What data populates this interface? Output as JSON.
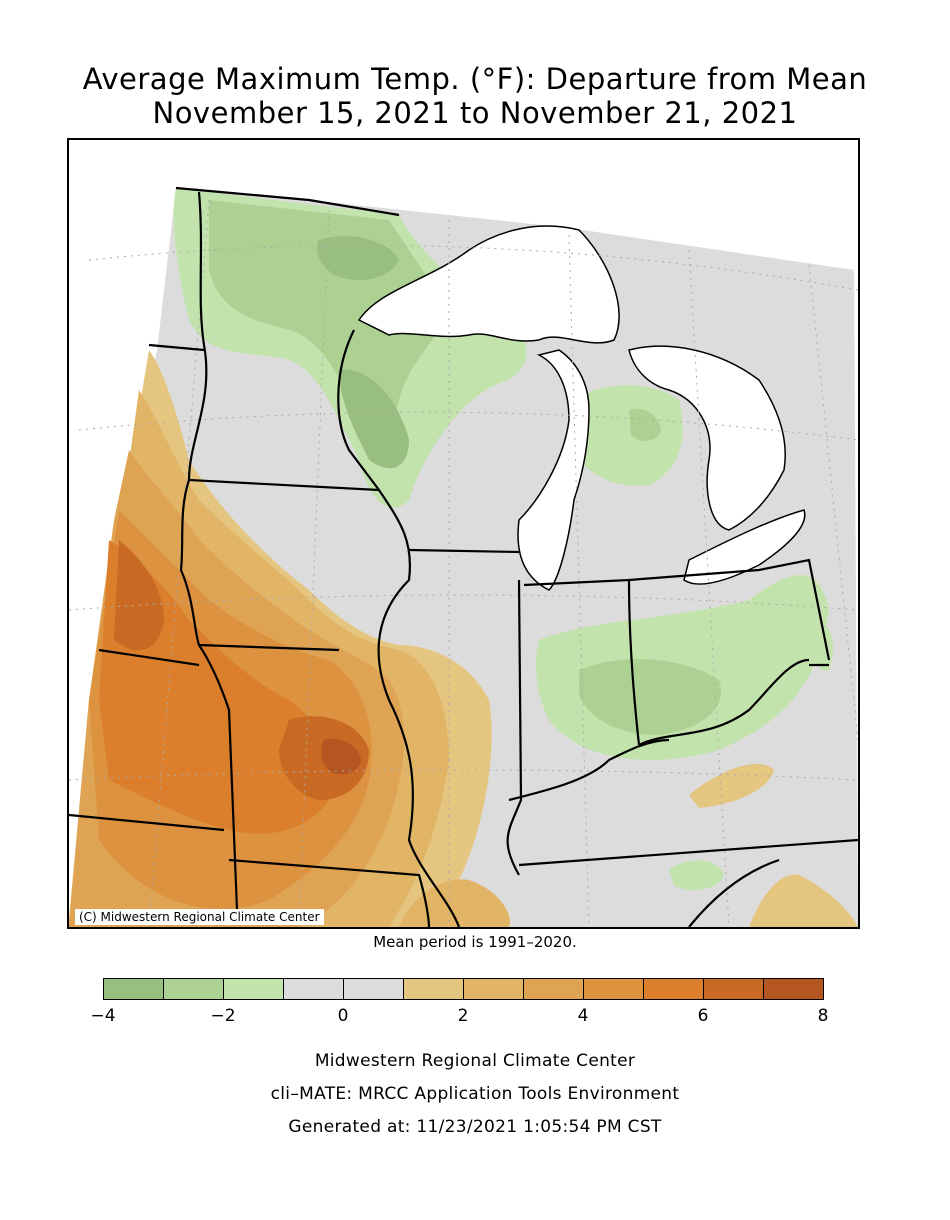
{
  "title": {
    "line1": "Average Maximum Temp. (°F): Departure from Mean",
    "line2": "November 15, 2021 to November 21, 2021"
  },
  "map": {
    "copyright": "(C) Midwestern Regional Climate Center",
    "mean_period": "Mean period is 1991–2020."
  },
  "legend": {
    "bins": [
      {
        "from": -4,
        "to": -3,
        "color": "#98bf80"
      },
      {
        "from": -3,
        "to": -2,
        "color": "#acd193"
      },
      {
        "from": -2,
        "to": -1,
        "color": "#c3e3ad"
      },
      {
        "from": -1,
        "to": 0,
        "color": "#dcdcdc"
      },
      {
        "from": 0,
        "to": 1,
        "color": "#dcdcdc"
      },
      {
        "from": 1,
        "to": 2,
        "color": "#e5c680"
      },
      {
        "from": 2,
        "to": 3,
        "color": "#e2b466"
      },
      {
        "from": 3,
        "to": 4,
        "color": "#dfa453"
      },
      {
        "from": 4,
        "to": 5,
        "color": "#dd9240"
      },
      {
        "from": 5,
        "to": 6,
        "color": "#db7f2c"
      },
      {
        "from": 6,
        "to": 7,
        "color": "#c96a24"
      },
      {
        "from": 7,
        "to": 8,
        "color": "#b45522"
      }
    ],
    "tick_labels": [
      "−4",
      "−2",
      "0",
      "2",
      "4",
      "6",
      "8"
    ]
  },
  "footer": {
    "line1": "Midwestern Regional Climate Center",
    "line2": "cli–MATE: MRCC Application Tools Environment",
    "line3": "Generated at: 11/23/2021 1:05:54 PM CST"
  }
}
